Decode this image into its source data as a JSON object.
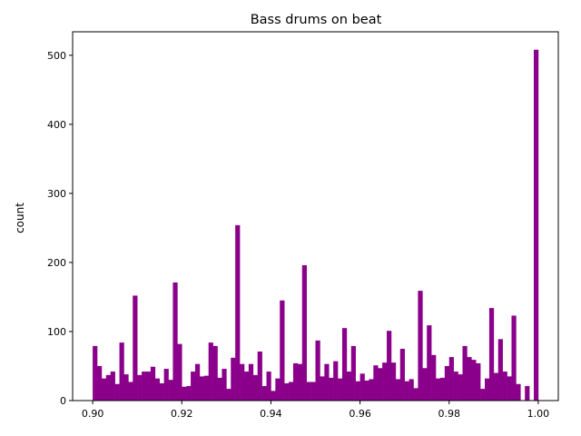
{
  "chart_data": {
    "type": "bar",
    "title": "Bass drums on beat",
    "xlabel": "",
    "ylabel": "count",
    "bin_start": 0.9,
    "bin_width": 0.001,
    "values": [
      79,
      50,
      32,
      37,
      42,
      24,
      84,
      38,
      27,
      152,
      37,
      42,
      42,
      49,
      32,
      25,
      46,
      30,
      171,
      82,
      20,
      21,
      42,
      53,
      35,
      36,
      84,
      79,
      33,
      46,
      17,
      62,
      254,
      53,
      42,
      53,
      37,
      71,
      21,
      42,
      14,
      32,
      145,
      25,
      27,
      54,
      53,
      196,
      27,
      27,
      87,
      35,
      53,
      33,
      57,
      32,
      105,
      42,
      79,
      28,
      39,
      29,
      31,
      51,
      47,
      55,
      101,
      55,
      31,
      75,
      28,
      31,
      18,
      159,
      47,
      109,
      66,
      32,
      33,
      50,
      63,
      42,
      38,
      79,
      63,
      59,
      54,
      17,
      32,
      134,
      40,
      89,
      42,
      35,
      123,
      24,
      0,
      21,
      0,
      508
    ],
    "xlim": [
      0.8955,
      1.0045
    ],
    "ylim": [
      0,
      534
    ],
    "xticks": [
      0.9,
      0.92,
      0.94,
      0.96,
      0.98,
      1.0
    ],
    "xtick_labels": [
      "0.90",
      "0.92",
      "0.94",
      "0.96",
      "0.98",
      "1.00"
    ],
    "yticks": [
      0,
      100,
      200,
      300,
      400,
      500
    ],
    "ytick_labels": [
      "0",
      "100",
      "200",
      "300",
      "400",
      "500"
    ],
    "bar_color": "#8b008b",
    "grid": false
  }
}
